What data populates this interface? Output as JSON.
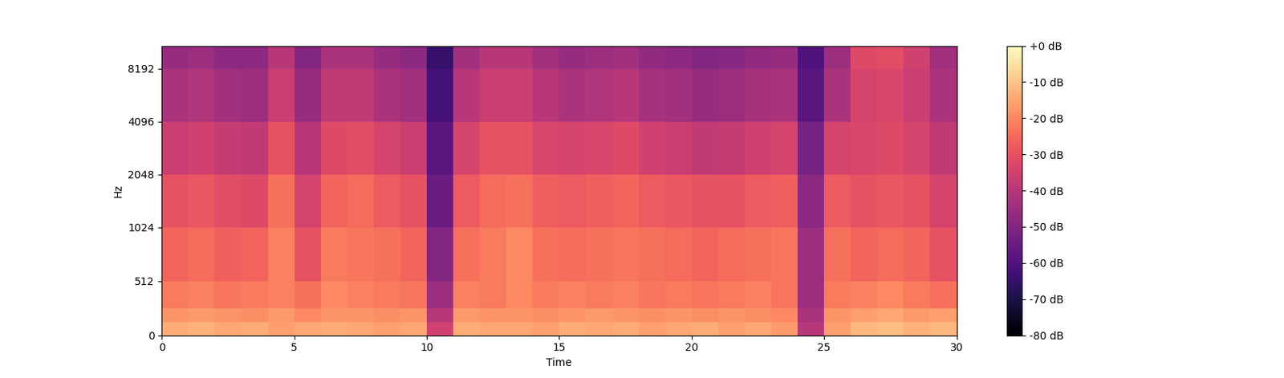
{
  "chart_data": {
    "type": "heatmap",
    "x_label": "Time",
    "y_label": "Hz",
    "xlim": [
      0,
      30
    ],
    "xticks": [
      0,
      5,
      10,
      15,
      20,
      25,
      30
    ],
    "ylim": [
      0,
      11025
    ],
    "yticks": [
      0,
      512,
      1024,
      2048,
      4096,
      8192
    ],
    "log": "y",
    "color": "magma",
    "time_edges": [
      0,
      1,
      2,
      3,
      4,
      5,
      6,
      7,
      8,
      9,
      10,
      11,
      12,
      13,
      14,
      15,
      16,
      17,
      18,
      19,
      20,
      21,
      22,
      23,
      24,
      25,
      26,
      27,
      28,
      29,
      30
    ],
    "freq_edges": [
      0,
      128,
      256,
      512,
      1024,
      2048,
      4096,
      8192,
      11025
    ],
    "cells": [
      [
        -14,
        -13,
        -15,
        -14,
        -16,
        -15,
        -14,
        -15,
        -16,
        -15,
        -35,
        -14,
        -15,
        -15,
        -16,
        -14,
        -15,
        -14,
        -16,
        -15,
        -14,
        -16,
        -15,
        -17,
        -40,
        -16,
        -12,
        -11,
        -13,
        -12
      ],
      [
        -18,
        -17,
        -18,
        -19,
        -17,
        -20,
        -18,
        -18,
        -19,
        -18,
        -40,
        -17,
        -18,
        -18,
        -19,
        -18,
        -17,
        -18,
        -19,
        -18,
        -19,
        -18,
        -19,
        -20,
        -42,
        -18,
        -16,
        -15,
        -17,
        -16
      ],
      [
        -22,
        -21,
        -23,
        -22,
        -21,
        -24,
        -20,
        -21,
        -22,
        -23,
        -45,
        -21,
        -22,
        -20,
        -22,
        -21,
        -22,
        -21,
        -23,
        -22,
        -23,
        -22,
        -21,
        -23,
        -45,
        -22,
        -21,
        -20,
        -22,
        -24
      ],
      [
        -26,
        -25,
        -27,
        -26,
        -21,
        -30,
        -22,
        -23,
        -24,
        -26,
        -50,
        -24,
        -22,
        -20,
        -24,
        -25,
        -24,
        -23,
        -24,
        -25,
        -26,
        -25,
        -24,
        -23,
        -45,
        -24,
        -26,
        -25,
        -26,
        -30
      ],
      [
        -30,
        -29,
        -31,
        -32,
        -24,
        -34,
        -26,
        -25,
        -28,
        -30,
        -55,
        -28,
        -25,
        -24,
        -27,
        -28,
        -27,
        -26,
        -28,
        -29,
        -30,
        -30,
        -28,
        -27,
        -48,
        -28,
        -30,
        -29,
        -30,
        -34
      ],
      [
        -36,
        -35,
        -37,
        -38,
        -30,
        -40,
        -32,
        -31,
        -34,
        -36,
        -58,
        -34,
        -30,
        -30,
        -33,
        -34,
        -33,
        -32,
        -35,
        -36,
        -38,
        -37,
        -35,
        -34,
        -52,
        -34,
        -33,
        -32,
        -34,
        -38
      ],
      [
        -42,
        -41,
        -44,
        -45,
        -36,
        -46,
        -38,
        -38,
        -42,
        -44,
        -62,
        -40,
        -36,
        -36,
        -40,
        -42,
        -41,
        -40,
        -43,
        -44,
        -46,
        -45,
        -43,
        -42,
        -58,
        -42,
        -34,
        -33,
        -36,
        -42
      ],
      [
        -46,
        -45,
        -48,
        -48,
        -40,
        -50,
        -42,
        -42,
        -46,
        -48,
        -65,
        -44,
        -40,
        -40,
        -44,
        -46,
        -45,
        -44,
        -47,
        -48,
        -50,
        -49,
        -47,
        -46,
        -60,
        -45,
        -32,
        -31,
        -35,
        -44
      ]
    ],
    "colorbar_range": [
      -80,
      0
    ],
    "colorbar_ticks": [
      {
        "value": 0,
        "label": "+0 dB"
      },
      {
        "value": -10,
        "label": "-10 dB"
      },
      {
        "value": -20,
        "label": "-20 dB"
      },
      {
        "value": -30,
        "label": "-30 dB"
      },
      {
        "value": -40,
        "label": "-40 dB"
      },
      {
        "value": -50,
        "label": "-50 dB"
      },
      {
        "value": -60,
        "label": "-60 dB"
      },
      {
        "value": -70,
        "label": "-70 dB"
      },
      {
        "value": -80,
        "label": "-80 dB"
      }
    ]
  }
}
